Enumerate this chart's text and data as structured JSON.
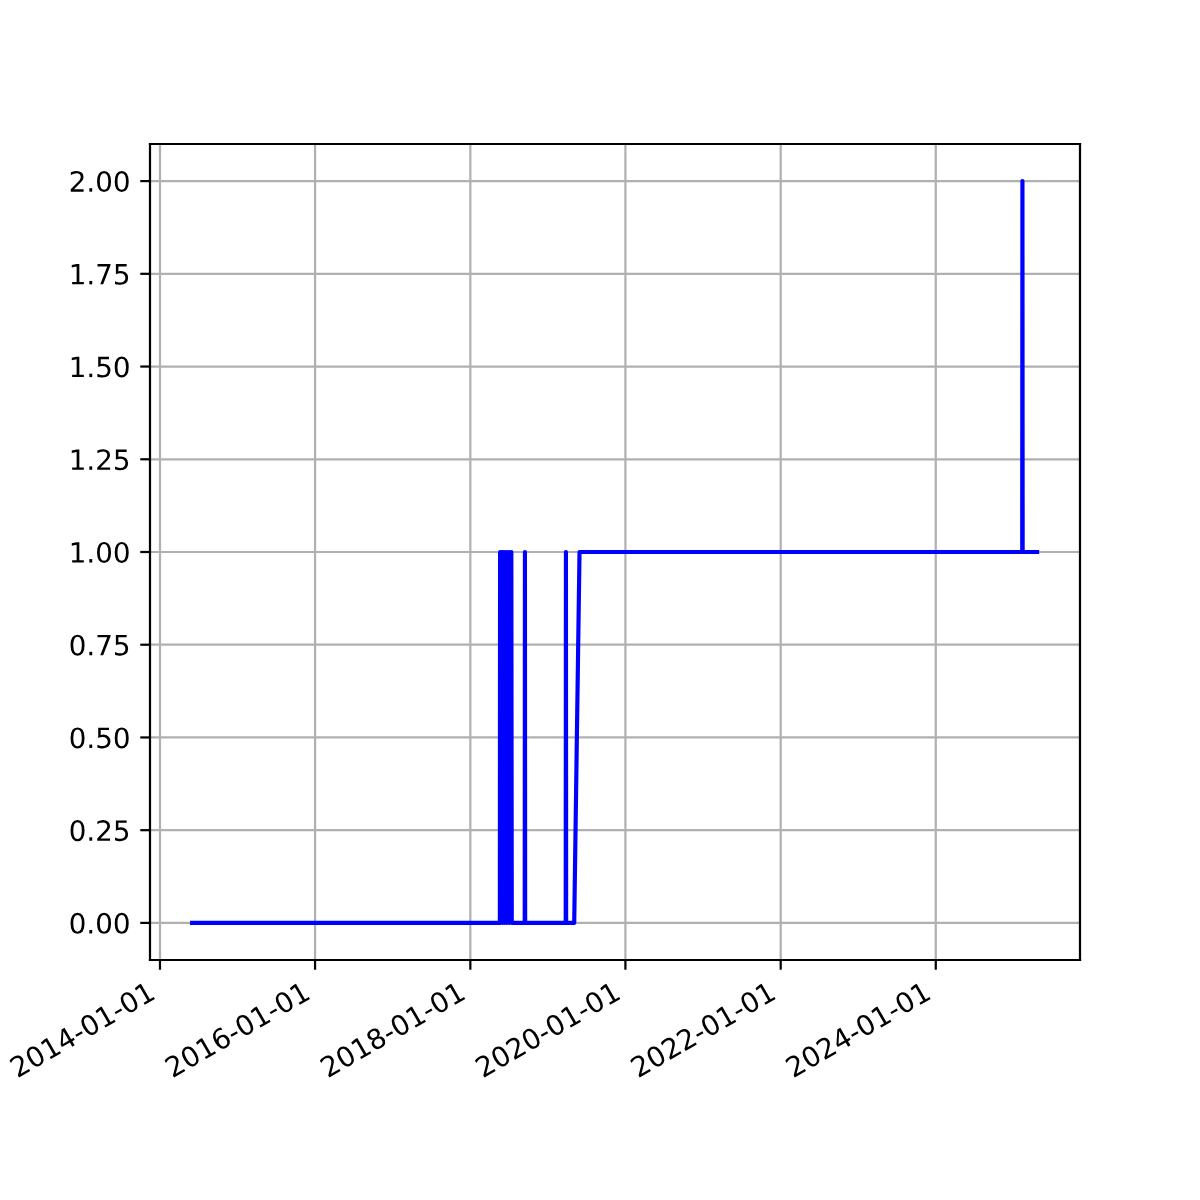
{
  "chart_data": {
    "type": "line",
    "x": [
      "2014-06-01",
      "2018-05-20",
      "2018-05-21",
      "2018-05-23",
      "2018-05-24",
      "2018-06-01",
      "2018-06-02",
      "2018-06-10",
      "2018-06-11",
      "2018-06-20",
      "2018-06-21",
      "2018-07-01",
      "2018-07-02",
      "2018-07-12",
      "2018-07-13",
      "2018-07-15",
      "2018-09-14",
      "2018-09-15",
      "2018-09-16",
      "2019-03-26",
      "2019-03-27",
      "2019-03-28",
      "2019-05-05",
      "2019-05-30",
      "2025-02-11",
      "2025-02-12",
      "2025-02-13",
      "2025-04-22"
    ],
    "series": [
      {
        "color": "#0000ff",
        "values": [
          0,
          0,
          1,
          1,
          0,
          1,
          0,
          1,
          0,
          1,
          0,
          1,
          0,
          1,
          1,
          0,
          0,
          1,
          0,
          0,
          1,
          0,
          0,
          1,
          1,
          2,
          1,
          1
        ]
      }
    ],
    "xlim": [
      "2013-11-15",
      "2025-11-10"
    ],
    "xticks": [
      "2014-01-01",
      "2016-01-01",
      "2018-01-01",
      "2020-01-01",
      "2022-01-01",
      "2024-01-01"
    ],
    "ylim": [
      -0.1,
      2.1
    ],
    "yticks": [
      {
        "value": 0,
        "label": "0.00"
      },
      {
        "value": 0.25,
        "label": "0.25"
      },
      {
        "value": 0.5,
        "label": "0.50"
      },
      {
        "value": 0.75,
        "label": "0.75"
      },
      {
        "value": 1,
        "label": "1.00"
      },
      {
        "value": 1.25,
        "label": "1.25"
      },
      {
        "value": 1.5,
        "label": "1.50"
      },
      {
        "value": 1.75,
        "label": "1.75"
      },
      {
        "value": 2,
        "label": "2.00"
      }
    ],
    "grid": true
  }
}
